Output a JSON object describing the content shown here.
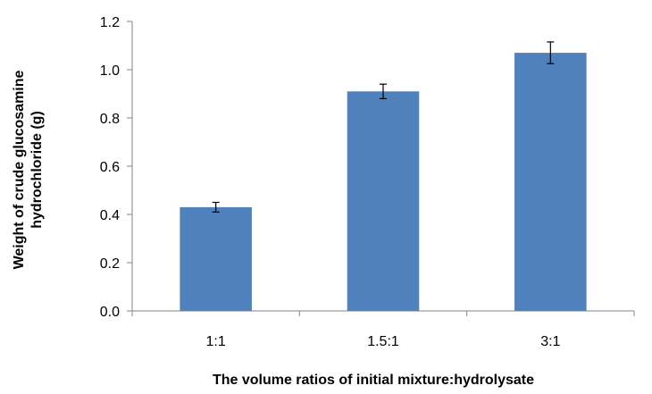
{
  "chart_data": {
    "type": "bar",
    "title": "",
    "categories": [
      "1:1",
      "1.5:1",
      "3:1"
    ],
    "series": [
      {
        "values": [
          0.43,
          0.91,
          1.07
        ],
        "error": [
          0.02,
          0.03,
          0.045
        ]
      }
    ],
    "xlabel": "The volume ratios of initial mixture:hydrolysate",
    "ylabel_lines": [
      "Weight of crude glucosamine",
      "hydrochloride (g)"
    ],
    "ylim": [
      0,
      1.2
    ],
    "yticks": [
      "0.0",
      "0.2",
      "0.4",
      "0.6",
      "0.8",
      "1.0",
      "1.2"
    ],
    "ytick_values": [
      0,
      0.2,
      0.4,
      0.6,
      0.8,
      1.0,
      1.2
    ],
    "grid": false,
    "legend": "none",
    "bar_color": "#4f81bd"
  }
}
